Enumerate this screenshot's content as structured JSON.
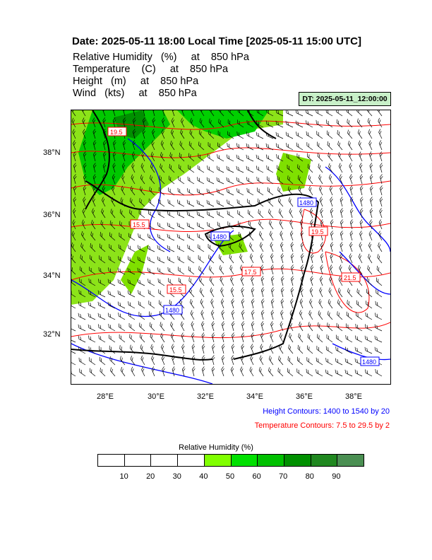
{
  "title": "Date: 2025-05-11  18:00 Local Time [2025-05-11  15:00 UTC]",
  "fields": [
    {
      "name": "Relative Humidity",
      "unit": "(%)",
      "at": "at",
      "level": "850 hPa"
    },
    {
      "name": "Temperature",
      "unit": "(C)",
      "at": "at",
      "level": "850 hPa"
    },
    {
      "name": "Height",
      "unit": "(m)",
      "at": "at",
      "level": "850 hPa"
    },
    {
      "name": "Wind",
      "unit": "(kts)",
      "at": "at",
      "level": "850 hPa"
    }
  ],
  "dt_label": "DT: 2025-05-11_12:00:00",
  "lat_labels": [
    "38°N",
    "36°N",
    "34°N",
    "32°N"
  ],
  "lon_labels": [
    "28°E",
    "30°E",
    "32°E",
    "34°E",
    "36°E",
    "38°E"
  ],
  "contour_labels": {
    "temperature": [
      "15.5",
      "15.5",
      "17.5",
      "19.5",
      "19.5",
      "21.5"
    ],
    "height": [
      "1480",
      "1480",
      "1480",
      "1480"
    ]
  },
  "legend": {
    "height": "Height Contours: 1400 to 1540 by 20",
    "temperature": "Temperature Contours: 7.5 to 29.5 by 2"
  },
  "colorbar": {
    "title": "Relative Humidity  (%)",
    "labels": [
      "10",
      "20",
      "30",
      "40",
      "50",
      "60",
      "70",
      "80",
      "90"
    ],
    "colors": [
      "#ffffff",
      "#ffffff",
      "#ffffff",
      "#ffffff",
      "#80ff00",
      "#00e000",
      "#00c000",
      "#009000",
      "#208820",
      "#4a8f52"
    ]
  },
  "colors": {
    "height_contour": "#0000ff",
    "temperature_contour": "#ff0000",
    "coast": "#000000",
    "dt_box": "#c8f0c8"
  }
}
